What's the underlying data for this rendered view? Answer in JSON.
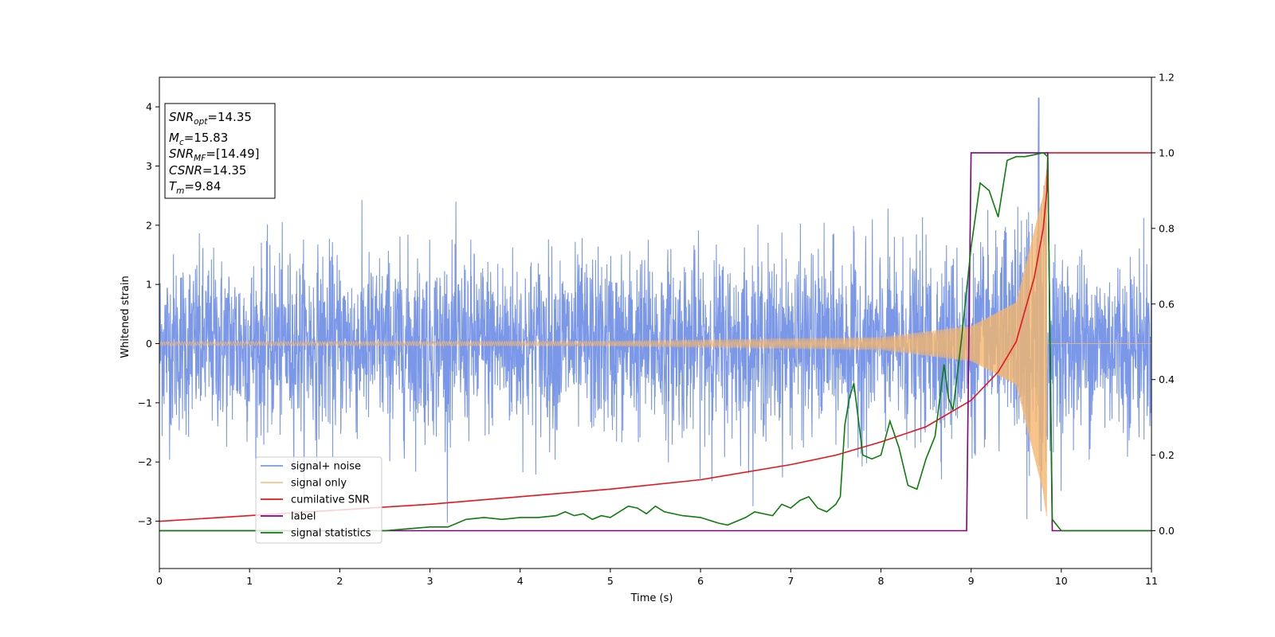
{
  "chart_data": {
    "type": "line",
    "title": "",
    "xlabel": "Time (s)",
    "ylabel": "Whitened strain",
    "y2label": "",
    "xlim": [
      0,
      11
    ],
    "ylim": [
      -3.8,
      4.5
    ],
    "y2lim": [
      -0.1,
      1.2
    ],
    "xticks": [
      "0",
      "1",
      "2",
      "3",
      "4",
      "5",
      "6",
      "7",
      "8",
      "9",
      "10",
      "11"
    ],
    "yticks": [
      "−3",
      "−2",
      "−1",
      "0",
      "1",
      "2",
      "3",
      "4"
    ],
    "y2ticks": [
      "0.0",
      "0.2",
      "0.4",
      "0.6",
      "0.8",
      "1.0",
      "1.2"
    ],
    "grid": false,
    "legend_position": "lower-left",
    "annotation": {
      "lines": [
        {
          "var": "SNR",
          "sub": "opt",
          "eq": "=14.35"
        },
        {
          "var": "M",
          "sub": "c",
          "eq": "=15.83"
        },
        {
          "var": "SNR",
          "sub": "MF",
          "eq": "=[14.49]"
        },
        {
          "var": "CSNR",
          "sub": "",
          "eq": "=14.35"
        },
        {
          "var": "T",
          "sub": "m",
          "eq": "=9.84"
        }
      ]
    },
    "series": [
      {
        "name": "signal+ noise",
        "color": "#7b97e8",
        "axis": "left",
        "description_values": {
          "noise_std": 0.75,
          "peak_time": 9.75,
          "peak_value": 4.15
        }
      },
      {
        "name": "signal only",
        "color": "#f5b76b",
        "axis": "left",
        "merger_time": 9.84,
        "amplitude_at": [
          [
            0,
            0.03
          ],
          [
            5,
            0.04
          ],
          [
            8,
            0.1
          ],
          [
            9,
            0.3
          ],
          [
            9.5,
            0.7
          ],
          [
            9.8,
            2.5
          ]
        ]
      },
      {
        "name": "cumilative SNR",
        "color": "#e8141a",
        "axis": "right",
        "x": [
          0,
          1,
          2,
          3,
          4,
          5,
          6,
          7,
          7.5,
          8,
          8.5,
          9,
          9.3,
          9.5,
          9.7,
          9.8,
          9.84,
          9.85,
          11
        ],
        "y": [
          0.025,
          0.04,
          0.055,
          0.07,
          0.09,
          0.11,
          0.135,
          0.175,
          0.2,
          0.235,
          0.275,
          0.345,
          0.42,
          0.5,
          0.67,
          0.8,
          0.9,
          1.0,
          1.0
        ]
      },
      {
        "name": "label",
        "color": "#800080",
        "axis": "right",
        "x": [
          0,
          8.95,
          9.0,
          9.85,
          9.9,
          11
        ],
        "y": [
          0,
          0,
          1,
          1,
          0,
          0
        ]
      },
      {
        "name": "signal statistics",
        "color": "#0a7d0a",
        "axis": "right",
        "x": [
          0,
          0.5,
          1,
          1.5,
          2,
          2.5,
          3,
          3.2,
          3.4,
          3.6,
          3.8,
          4.0,
          4.2,
          4.4,
          4.5,
          4.6,
          4.7,
          4.8,
          4.9,
          5.0,
          5.1,
          5.2,
          5.3,
          5.4,
          5.5,
          5.6,
          5.8,
          6.0,
          6.2,
          6.3,
          6.5,
          6.6,
          6.8,
          6.9,
          7.0,
          7.1,
          7.2,
          7.3,
          7.4,
          7.5,
          7.55,
          7.6,
          7.65,
          7.7,
          7.8,
          7.9,
          8.0,
          8.1,
          8.2,
          8.3,
          8.4,
          8.5,
          8.6,
          8.7,
          8.75,
          8.8,
          8.9,
          9.0,
          9.1,
          9.2,
          9.3,
          9.4,
          9.5,
          9.6,
          9.7,
          9.8,
          9.85,
          9.9,
          10.0,
          11
        ],
        "y": [
          0.0,
          0.0,
          0.0,
          0.0,
          0.0,
          0.0,
          0.01,
          0.01,
          0.03,
          0.035,
          0.03,
          0.035,
          0.035,
          0.04,
          0.05,
          0.04,
          0.045,
          0.03,
          0.04,
          0.035,
          0.05,
          0.065,
          0.06,
          0.045,
          0.065,
          0.05,
          0.04,
          0.035,
          0.02,
          0.015,
          0.035,
          0.05,
          0.04,
          0.07,
          0.06,
          0.08,
          0.09,
          0.06,
          0.05,
          0.07,
          0.09,
          0.28,
          0.35,
          0.39,
          0.2,
          0.19,
          0.2,
          0.29,
          0.22,
          0.12,
          0.11,
          0.19,
          0.25,
          0.44,
          0.35,
          0.32,
          0.52,
          0.75,
          0.92,
          0.9,
          0.83,
          0.98,
          0.99,
          0.99,
          0.995,
          1.0,
          0.99,
          0.03,
          0.0,
          0.0
        ]
      }
    ]
  }
}
